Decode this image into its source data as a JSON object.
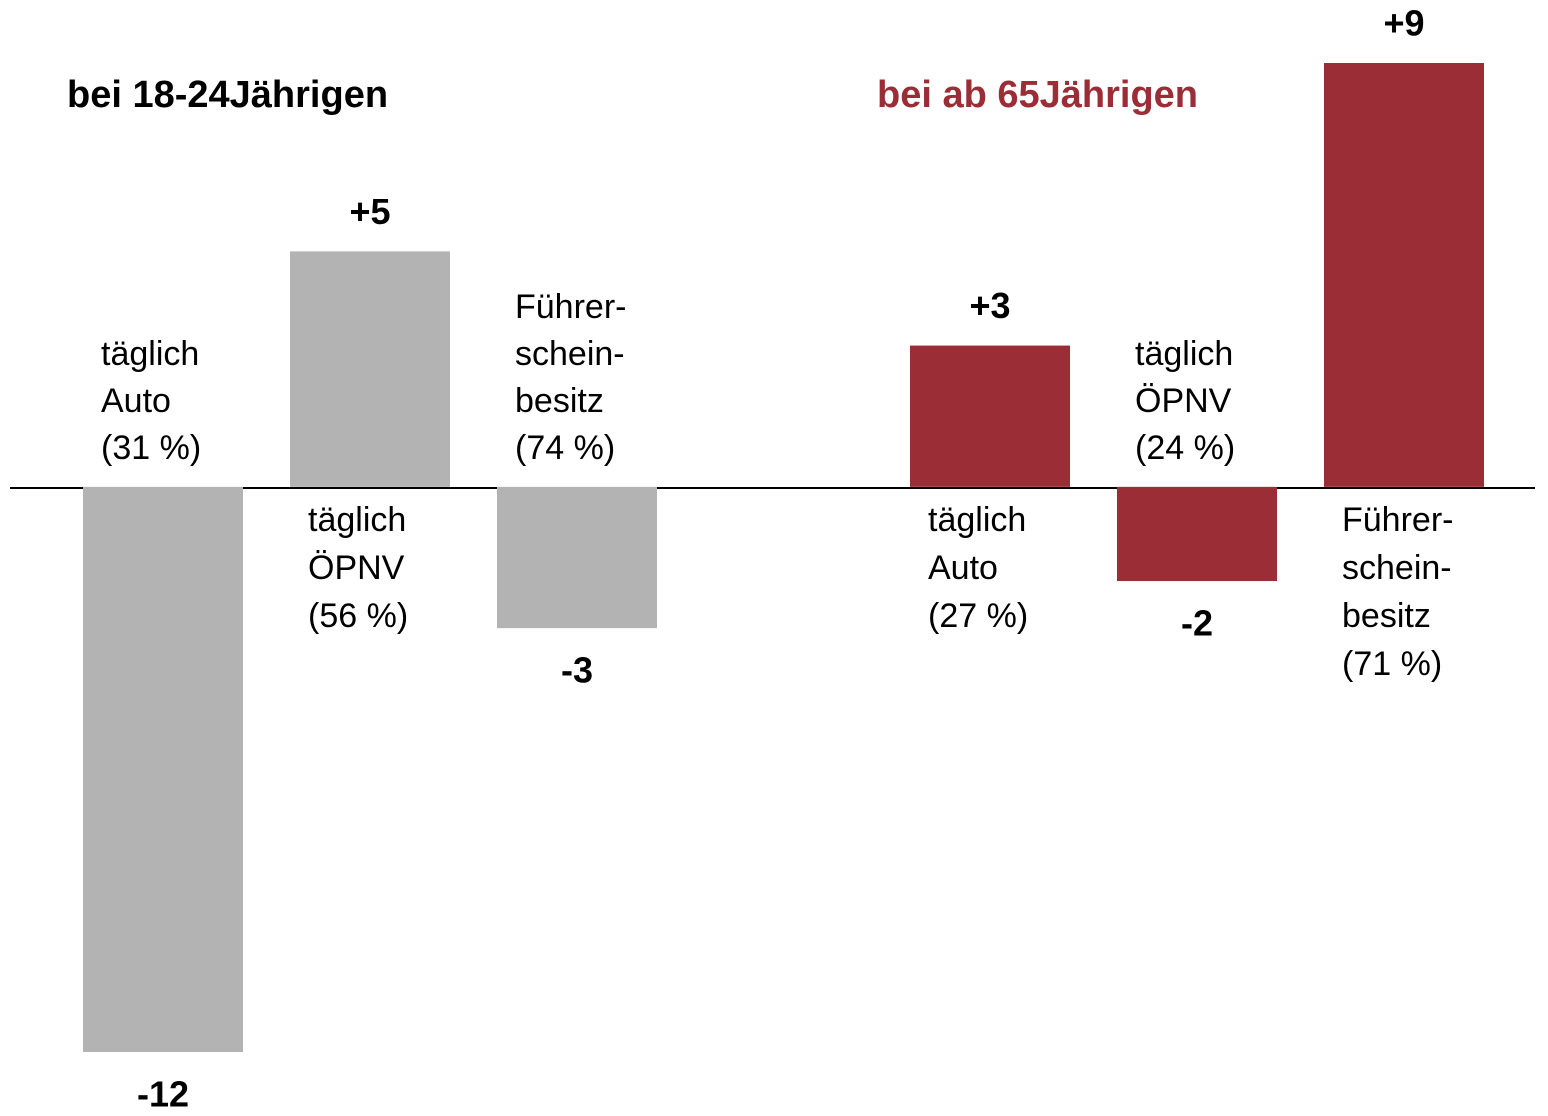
{
  "chart_data": [
    {
      "type": "bar",
      "title": "bei 18-24Jährigen",
      "title_color": "#000000",
      "color": "#b3b3b3",
      "categories": [
        [
          "täglich",
          "Auto",
          "(31 %)"
        ],
        [
          "täglich",
          "ÖPNV",
          "(56 %)"
        ],
        [
          "Führer-",
          "schein-",
          "besitz",
          "(74 %)"
        ]
      ],
      "values": [
        -12,
        5,
        -3
      ],
      "value_labels": [
        "-12",
        "+5",
        "-3"
      ]
    },
    {
      "type": "bar",
      "title": "bei ab 65Jährigen",
      "title_color": "#9b2d37",
      "color": "#9b2d37",
      "categories": [
        [
          "täglich",
          "Auto",
          "(27 %)"
        ],
        [
          "täglich",
          "ÖPNV",
          "(24 %)"
        ],
        [
          "Führer-",
          "schein-",
          "besitz",
          "(71 %)"
        ]
      ],
      "values": [
        3,
        -2,
        9
      ],
      "value_labels": [
        "+3",
        "-2",
        "+9"
      ]
    }
  ]
}
